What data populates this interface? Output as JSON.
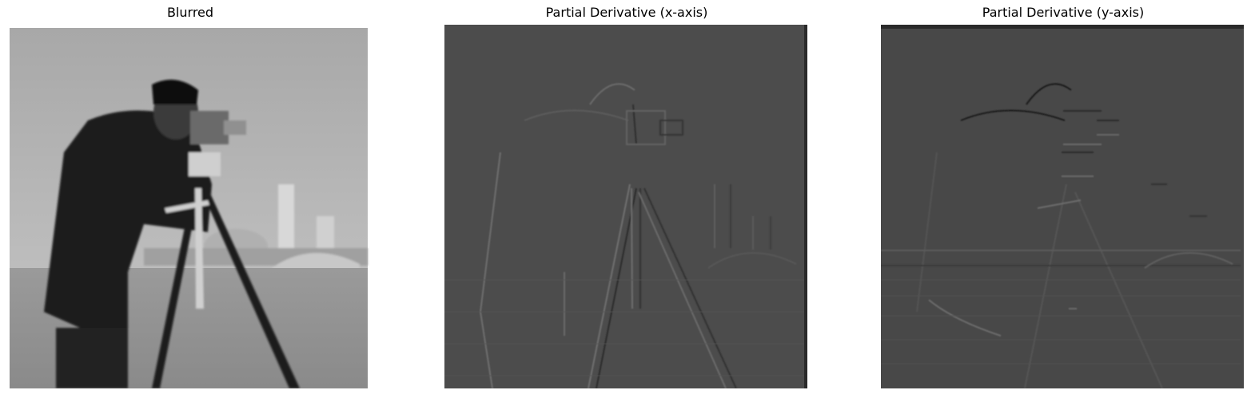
{
  "figure": {
    "panels": [
      {
        "title": "Blurred",
        "background": "#bdbdbd"
      },
      {
        "title": "Partial Derivative (x-axis)",
        "background": "#4c4c4c"
      },
      {
        "title": "Partial Derivative (y-axis)",
        "background": "#484848"
      }
    ]
  }
}
